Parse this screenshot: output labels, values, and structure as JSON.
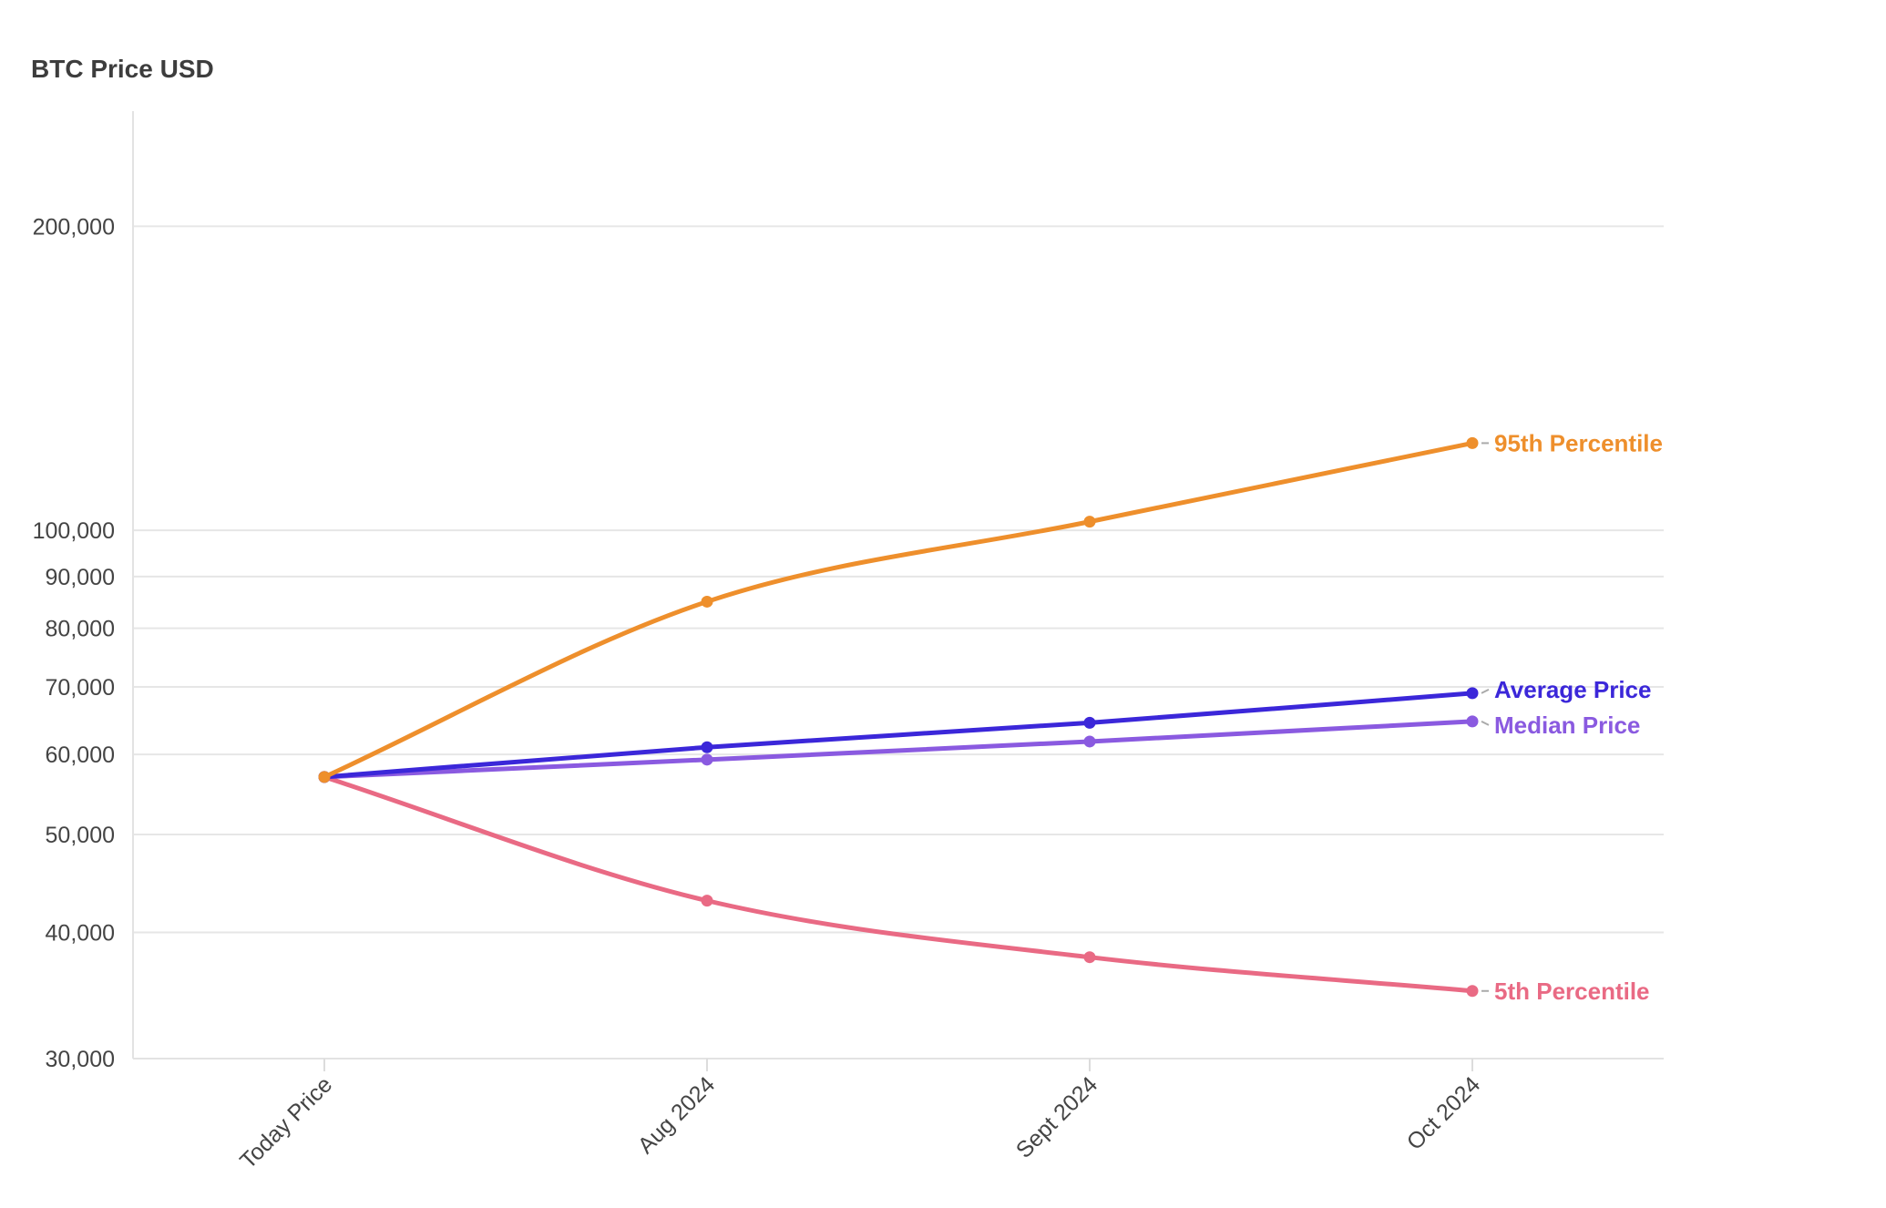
{
  "chart_data": {
    "type": "line",
    "title": "BTC Price USD",
    "xlabel": "",
    "ylabel": "",
    "y_scale": "log",
    "ylim": [
      30000,
      260000
    ],
    "y_ticks": [
      30000,
      40000,
      50000,
      60000,
      70000,
      80000,
      90000,
      100000,
      200000
    ],
    "y_tick_labels": [
      "30,000",
      "40,000",
      "50,000",
      "60,000",
      "70,000",
      "80,000",
      "90,000",
      "100,000",
      "200,000"
    ],
    "grid": true,
    "legend": "direct labels at line ends (right)",
    "categories": [
      "Today Price",
      "Aug 2024",
      "Sept 2024",
      "Oct 2024"
    ],
    "series": [
      {
        "name": "95th Percentile",
        "color": "#ee8f2c",
        "values": [
          57000,
          85000,
          102000,
          122000
        ]
      },
      {
        "name": "Average Price",
        "color": "#3b27d9",
        "values": [
          57000,
          61000,
          64500,
          69000
        ]
      },
      {
        "name": "Median Price",
        "color": "#8a5ae0",
        "values": [
          57000,
          59300,
          61800,
          64700
        ]
      },
      {
        "name": "5th Percentile",
        "color": "#e96a84",
        "values": [
          57000,
          43000,
          37800,
          35000
        ]
      }
    ]
  }
}
